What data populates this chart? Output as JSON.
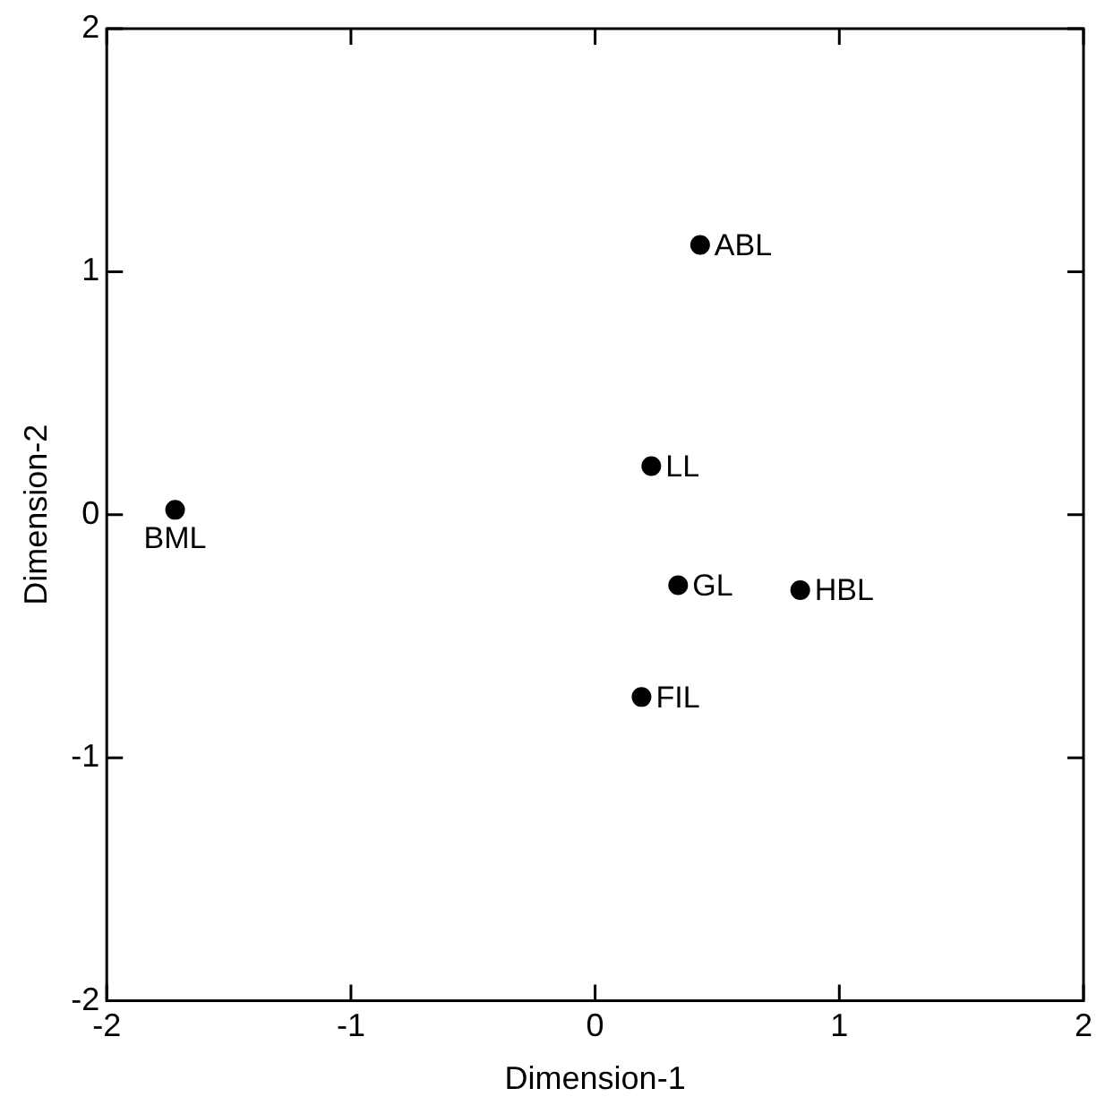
{
  "chart_data": {
    "type": "scatter",
    "xlabel": "Dimension-1",
    "ylabel": "Dimension-2",
    "x": [
      0.43,
      0.23,
      -1.72,
      0.34,
      0.84,
      0.19
    ],
    "values": [
      1.11,
      0.2,
      0.02,
      -0.29,
      -0.31,
      -0.75
    ],
    "color": "#000000",
    "marker": "circle",
    "xlim": [
      -2,
      2
    ],
    "xticks": [
      -2,
      -1,
      0,
      1,
      2
    ],
    "ylim": [
      -2,
      2
    ],
    "yticks": [
      -2,
      -1,
      0,
      1,
      2
    ],
    "grid": false,
    "legend": false,
    "annotations": [
      {
        "text": "ABL",
        "x": 0.43,
        "y": 1.11
      },
      {
        "text": "LL",
        "x": 0.23,
        "y": 0.2
      },
      {
        "text": "BML",
        "x": -1.72,
        "y": 0.02
      },
      {
        "text": "GL",
        "x": 0.34,
        "y": -0.29
      },
      {
        "text": "HBL",
        "x": 0.84,
        "y": -0.31
      },
      {
        "text": "FIL",
        "x": 0.19,
        "y": -0.75
      }
    ]
  }
}
